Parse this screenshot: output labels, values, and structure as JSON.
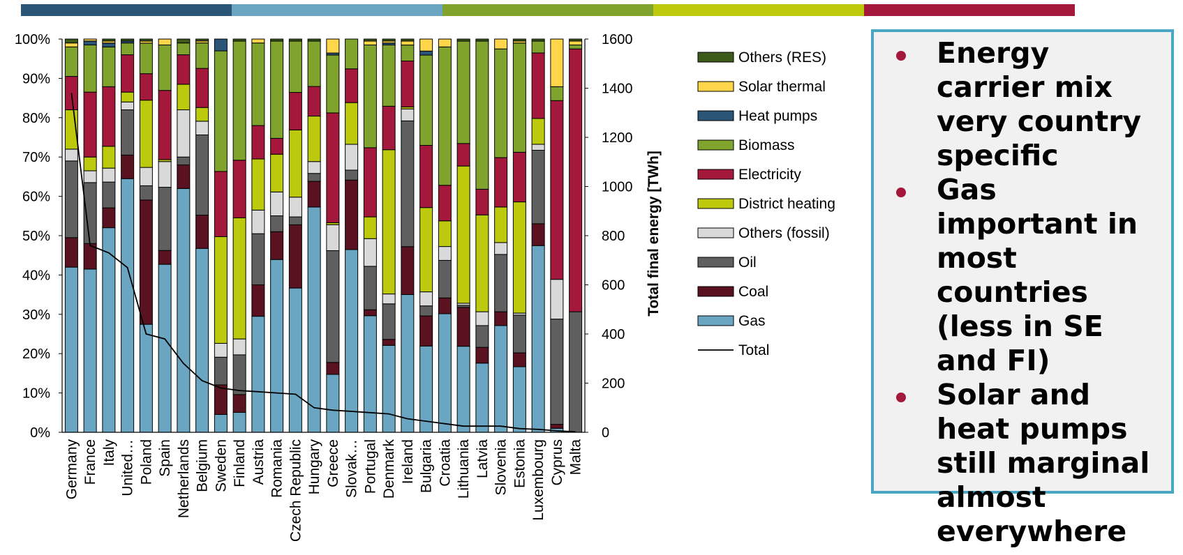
{
  "top_bar": {
    "colors": [
      "#2b5577",
      "#6aa6c2",
      "#7fa32d",
      "#bcc90d",
      "#a3183b"
    ]
  },
  "chart_data": {
    "type": "bar",
    "stacked": true,
    "percent_axis": true,
    "categories": [
      "Germany",
      "France",
      "Italy",
      "United…",
      "Poland",
      "Spain",
      "Netherlands",
      "Belgium",
      "Sweden",
      "Finland",
      "Austria",
      "Romania",
      "Czech Republic",
      "Hungary",
      "Greece",
      "Slovak…",
      "Portugal",
      "Denmark",
      "Ireland",
      "Bulgaria",
      "Croatia",
      "Lithuania",
      "Latvia",
      "Slovenia",
      "Estonia",
      "Luxembourg",
      "Cyprus",
      "Malta"
    ],
    "series": [
      {
        "name": "Gas",
        "color": "#6aa6c2",
        "values": [
          42,
          41.5,
          51.5,
          64.5,
          26.5,
          42.5,
          62,
          47,
          4.5,
          5,
          29.5,
          43.5,
          36.5,
          57,
          14.5,
          46,
          29.5,
          22,
          34.5,
          21.5,
          30,
          21,
          17.5,
          27,
          16.5,
          47,
          1,
          0
        ]
      },
      {
        "name": "Coal",
        "color": "#5a1220",
        "values": [
          7.5,
          6.5,
          5,
          6,
          30.5,
          3.5,
          6,
          8.5,
          7.5,
          4.5,
          8,
          7,
          16,
          6.5,
          3,
          17.5,
          1.5,
          1.5,
          12,
          7.5,
          4,
          9.5,
          4,
          3.5,
          3.5,
          5.5,
          1,
          0
        ]
      },
      {
        "name": "Oil",
        "color": "#5f5f5f",
        "values": [
          19.5,
          15.5,
          6.5,
          11.5,
          3.5,
          16,
          2,
          20.5,
          7,
          10,
          13,
          4,
          2,
          2,
          28,
          2.5,
          11,
          9,
          31.5,
          2.5,
          9.5,
          0.5,
          5.5,
          14.5,
          9.5,
          18.5,
          26.5,
          30.5
        ]
      },
      {
        "name": "Others (fossil)",
        "color": "#d9d9d9",
        "values": [
          3,
          3,
          3.5,
          2,
          4.5,
          6.5,
          12,
          3.5,
          3.5,
          4,
          6,
          6,
          5,
          3,
          6.5,
          6.5,
          7,
          2.5,
          3,
          3.5,
          3.5,
          0.5,
          3.5,
          3,
          0.5,
          1.5,
          10,
          0
        ]
      },
      {
        "name": "District heating",
        "color": "#bcc90d",
        "values": [
          10,
          3.5,
          5.5,
          2.5,
          16.5,
          0.5,
          6.5,
          3.5,
          27,
          30.5,
          13,
          9.5,
          17,
          11.5,
          0.5,
          10.5,
          5.5,
          36.5,
          0.5,
          21,
          6.5,
          33.5,
          24.5,
          9,
          28,
          6.5,
          0,
          0
        ]
      },
      {
        "name": "Electricity",
        "color": "#a3183b",
        "values": [
          8.5,
          16.5,
          15,
          9.5,
          6.5,
          17.5,
          7.5,
          10,
          16.5,
          14.5,
          8.5,
          4,
          9.5,
          7.5,
          27.5,
          8.5,
          17.5,
          11,
          11.5,
          15.5,
          9,
          5.5,
          6.5,
          12.5,
          12.5,
          16.5,
          45,
          66.5
        ]
      },
      {
        "name": "Biomass",
        "color": "#7fa32d",
        "values": [
          7.5,
          12,
          10,
          3,
          7.5,
          11.5,
          3,
          6.5,
          30.5,
          30,
          21,
          24.5,
          13,
          11.5,
          14.5,
          7.5,
          26,
          15.5,
          4,
          22.5,
          35,
          25,
          37.5,
          27.5,
          27.5,
          3,
          3.5,
          1
        ]
      },
      {
        "name": "Heat pumps",
        "color": "#2b5577",
        "values": [
          0,
          1,
          1,
          0.5,
          0,
          0,
          0,
          0,
          3,
          0,
          0,
          0,
          0,
          0,
          0.5,
          0,
          0,
          0.5,
          0,
          1,
          0,
          0,
          0,
          0,
          0,
          0,
          0,
          0
        ]
      },
      {
        "name": "Solar thermal",
        "color": "#ffd54a",
        "values": [
          1,
          0.5,
          0.5,
          0,
          0.5,
          1.5,
          0,
          0.5,
          0,
          0,
          1,
          0,
          0,
          0,
          3.5,
          0,
          1,
          0.5,
          1,
          3,
          2,
          0,
          0,
          2.5,
          0.5,
          0,
          12,
          1
        ]
      },
      {
        "name": "Others (RES)",
        "color": "#3c5a1a",
        "values": [
          1,
          0,
          0.5,
          0.5,
          0.5,
          0,
          1,
          0.5,
          0,
          0.5,
          0,
          0.5,
          0.5,
          0.5,
          0,
          0,
          0.5,
          0.5,
          0.5,
          0,
          0,
          0.5,
          0.5,
          0,
          0.5,
          0.5,
          0,
          0.5
        ]
      }
    ],
    "line_series": {
      "name": "Total",
      "color": "#000000",
      "values": [
        1380,
        760,
        730,
        670,
        400,
        380,
        280,
        210,
        180,
        170,
        165,
        160,
        155,
        100,
        90,
        85,
        80,
        75,
        55,
        45,
        35,
        25,
        25,
        25,
        15,
        12,
        6,
        2
      ]
    },
    "ylim_left": [
      0,
      100
    ],
    "yticks_left": [
      "0%",
      "10%",
      "20%",
      "30%",
      "40%",
      "50%",
      "60%",
      "70%",
      "80%",
      "90%",
      "100%"
    ],
    "ylim_right": [
      0,
      1600
    ],
    "yticks_right": [
      "0",
      "200",
      "400",
      "600",
      "800",
      "1000",
      "1200",
      "1400",
      "1600"
    ],
    "ylabel_right": "Total final energy [TWh]",
    "legend_order": [
      "Others (RES)",
      "Solar thermal",
      "Heat pumps",
      "Biomass",
      "Electricity",
      "District heating",
      "Others (fossil)",
      "Oil",
      "Coal",
      "Gas",
      "Total"
    ],
    "legend_position": "right",
    "grid": false
  },
  "bullets": {
    "dot_color": "#a3183b",
    "items": [
      {
        "text": "Energy carrier mix very country specific"
      },
      {
        "text": "Gas important in most countries (less in SE and FI)"
      },
      {
        "text": "Solar and heat pumps still marginal almost everywhere"
      }
    ]
  }
}
